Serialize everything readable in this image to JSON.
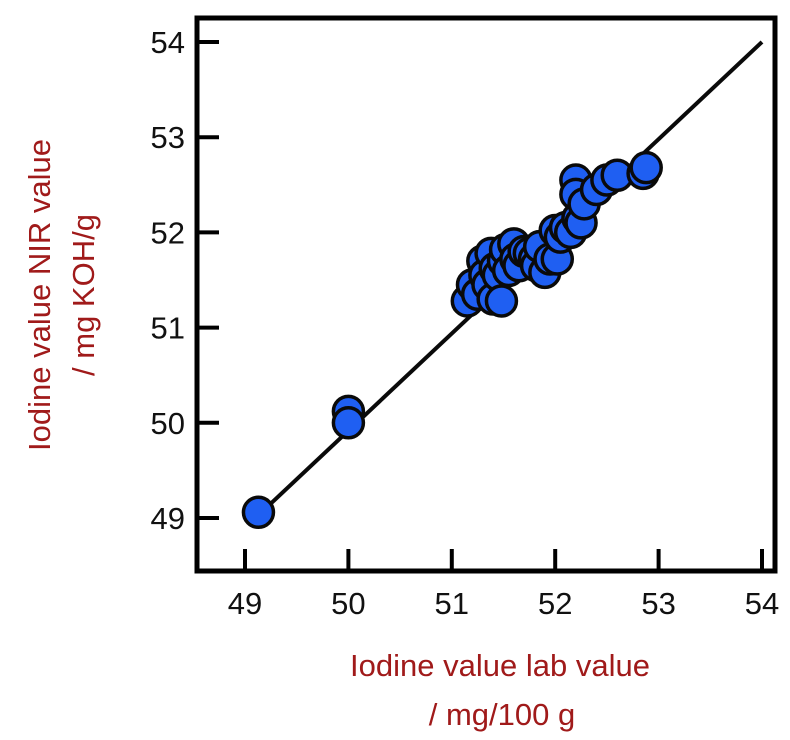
{
  "chart_data": {
    "type": "scatter",
    "title": "",
    "xlabel": "Iodine value lab value",
    "xunit": "/ mg/100 g",
    "ylabel": "Iodine value NIR value",
    "yunit": "/ mg KOH/g",
    "xlim": [
      49,
      54
    ],
    "ylim": [
      49,
      54
    ],
    "xticks": [
      "49",
      "50",
      "51",
      "52",
      "53",
      "54"
    ],
    "yticks": [
      "49",
      "50",
      "51",
      "52",
      "53",
      "54"
    ],
    "grid": false,
    "legend": "none",
    "series": [
      {
        "points": [
          [
            49.13,
            49.06
          ],
          [
            50.0,
            50.12
          ],
          [
            50.0,
            50.0
          ],
          [
            51.15,
            51.28
          ],
          [
            51.2,
            51.45
          ],
          [
            51.25,
            51.35
          ],
          [
            51.3,
            51.7
          ],
          [
            51.32,
            51.55
          ],
          [
            51.35,
            51.45
          ],
          [
            51.38,
            51.78
          ],
          [
            51.4,
            51.3
          ],
          [
            51.42,
            51.62
          ],
          [
            51.45,
            51.55
          ],
          [
            51.48,
            51.28
          ],
          [
            51.5,
            51.7
          ],
          [
            51.52,
            51.82
          ],
          [
            51.55,
            51.6
          ],
          [
            51.6,
            51.88
          ],
          [
            51.62,
            51.72
          ],
          [
            51.65,
            51.65
          ],
          [
            51.7,
            51.8
          ],
          [
            51.75,
            51.78
          ],
          [
            51.8,
            51.72
          ],
          [
            51.82,
            51.65
          ],
          [
            51.85,
            51.85
          ],
          [
            51.9,
            51.58
          ],
          [
            51.95,
            51.72
          ],
          [
            52.0,
            52.02
          ],
          [
            52.02,
            51.72
          ],
          [
            52.05,
            51.95
          ],
          [
            52.1,
            52.05
          ],
          [
            52.15,
            52.0
          ],
          [
            52.2,
            52.55
          ],
          [
            52.2,
            52.4
          ],
          [
            52.22,
            52.15
          ],
          [
            52.25,
            52.1
          ],
          [
            52.28,
            52.3
          ],
          [
            52.4,
            52.45
          ],
          [
            52.5,
            52.55
          ],
          [
            52.6,
            52.6
          ],
          [
            52.85,
            52.62
          ],
          [
            52.88,
            52.68
          ]
        ]
      }
    ],
    "fit_line": {
      "x": [
        49.15,
        54.0
      ],
      "y": [
        49.05,
        54.0
      ]
    },
    "colors": {
      "marker_fill": "#1f5ff2",
      "marker_stroke": "#0a0a0a",
      "axis_title": "#a01a1a",
      "line": "#0a0a0a"
    }
  }
}
